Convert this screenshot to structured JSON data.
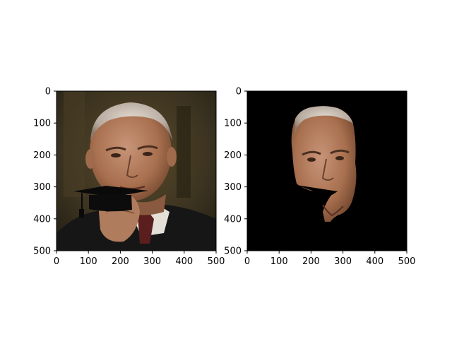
{
  "figure": {
    "background": "#ffffff",
    "panels": [
      {
        "id": "left",
        "content": "portrait-with-graduation-cap",
        "xlim": [
          0,
          500
        ],
        "ylim": [
          500,
          0
        ],
        "x_ticks": [
          "0",
          "100",
          "200",
          "300",
          "400",
          "500"
        ],
        "y_ticks": [
          "0",
          "100",
          "200",
          "300",
          "400",
          "500"
        ]
      },
      {
        "id": "right",
        "content": "segmented-face-on-black",
        "xlim": [
          0,
          500
        ],
        "ylim": [
          500,
          0
        ],
        "x_ticks": [
          "0",
          "100",
          "200",
          "300",
          "400",
          "500"
        ],
        "y_ticks": [
          "0",
          "100",
          "200",
          "300",
          "400",
          "500"
        ]
      }
    ]
  },
  "colors": {
    "skin": "#b07c5e",
    "skin_shadow": "#8a5a40",
    "hair": "#c9c0b6",
    "background_dark": "#3a3420",
    "suit": "#1a1a1a",
    "shirt": "#e8e4dc",
    "tie": "#5a1e1e",
    "cap": "#0a0a0a",
    "mask_background": "#000000"
  }
}
